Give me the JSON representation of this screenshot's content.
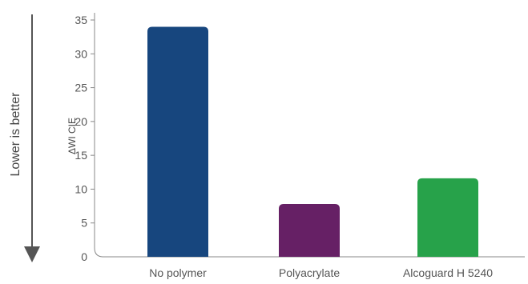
{
  "chart_data": {
    "type": "bar",
    "categories": [
      "No polymer",
      "Polyacrylate",
      "Alcoguard H 5240"
    ],
    "values": [
      34,
      7.8,
      11.6
    ],
    "colors": [
      "#17467e",
      "#662065",
      "#27a24a"
    ],
    "title": "",
    "xlabel": "",
    "ylabel": "ΔWI CIE",
    "ylim": [
      0,
      35
    ],
    "yticks": [
      0,
      5,
      10,
      15,
      20,
      25,
      30,
      35
    ],
    "grid": false,
    "annotation": "Lower is better"
  }
}
